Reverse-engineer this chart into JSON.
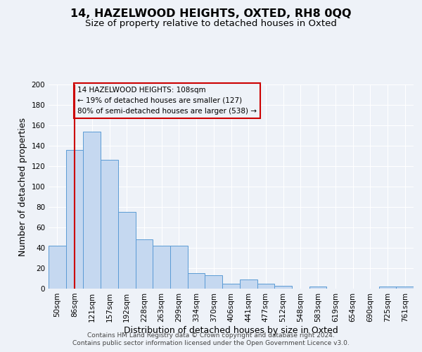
{
  "title": "14, HAZELWOOD HEIGHTS, OXTED, RH8 0QQ",
  "subtitle": "Size of property relative to detached houses in Oxted",
  "xlabel": "Distribution of detached houses by size in Oxted",
  "ylabel": "Number of detached properties",
  "bar_labels": [
    "50sqm",
    "86sqm",
    "121sqm",
    "157sqm",
    "192sqm",
    "228sqm",
    "263sqm",
    "299sqm",
    "334sqm",
    "370sqm",
    "406sqm",
    "441sqm",
    "477sqm",
    "512sqm",
    "548sqm",
    "583sqm",
    "619sqm",
    "654sqm",
    "690sqm",
    "725sqm",
    "761sqm"
  ],
  "bar_values": [
    42,
    136,
    154,
    126,
    75,
    48,
    42,
    42,
    15,
    13,
    5,
    9,
    5,
    3,
    0,
    2,
    0,
    0,
    0,
    2,
    2
  ],
  "bar_color": "#c5d8f0",
  "bar_edge_color": "#5b9bd5",
  "vline_x": 1.0,
  "vline_color": "#cc0000",
  "annotation_text": "14 HAZELWOOD HEIGHTS: 108sqm\n← 19% of detached houses are smaller (127)\n80% of semi-detached houses are larger (538) →",
  "annotation_box_edge": "#cc0000",
  "ylim": [
    0,
    200
  ],
  "yticks": [
    0,
    20,
    40,
    60,
    80,
    100,
    120,
    140,
    160,
    180,
    200
  ],
  "footnote1": "Contains HM Land Registry data © Crown copyright and database right 2024.",
  "footnote2": "Contains public sector information licensed under the Open Government Licence v3.0.",
  "bg_color": "#eef2f8",
  "grid_color": "#ffffff",
  "title_fontsize": 11.5,
  "subtitle_fontsize": 9.5,
  "label_fontsize": 9,
  "tick_fontsize": 7.5,
  "footnote_fontsize": 6.5
}
